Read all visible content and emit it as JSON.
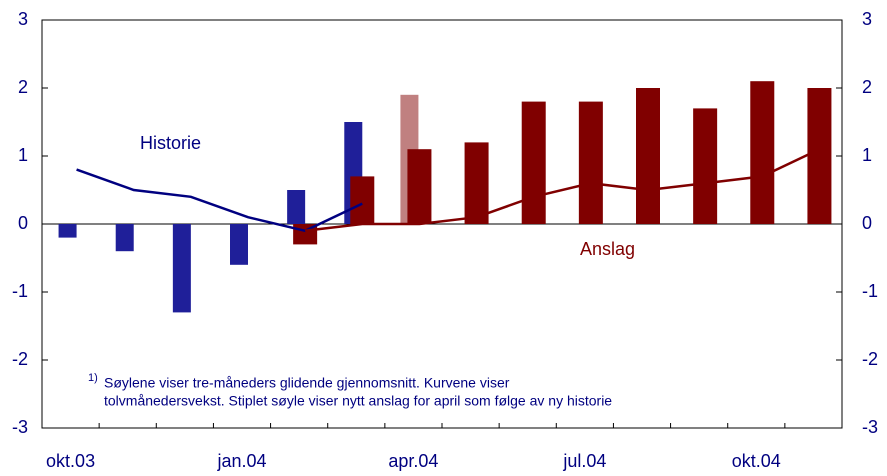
{
  "chart_data": {
    "type": "bar",
    "categories": [
      "okt.03",
      null,
      null,
      "jan.04",
      null,
      null,
      "apr.04",
      null,
      null,
      "jul.04",
      null,
      null,
      "okt.04",
      null
    ],
    "series": [
      {
        "name": "Historie",
        "type": "bar",
        "color": "#1f1f99",
        "values": [
          -0.2,
          -0.4,
          -1.3,
          -0.6,
          0.5,
          1.5,
          null,
          null,
          null,
          null,
          null,
          null,
          null,
          null
        ]
      },
      {
        "type": "bar",
        "color": "#c08080",
        "values": [
          null,
          null,
          null,
          null,
          null,
          null,
          1.9,
          null,
          null,
          null,
          null,
          null,
          null,
          null
        ]
      },
      {
        "name": "Anslag",
        "type": "bar",
        "color": "#800000",
        "values": [
          null,
          null,
          null,
          null,
          -0.3,
          0.7,
          1.1,
          1.2,
          1.8,
          1.8,
          2.0,
          1.7,
          2.1,
          2.0
        ]
      },
      {
        "type": "line",
        "color": "#000080",
        "values": [
          0.8,
          0.5,
          0.4,
          0.1,
          -0.1,
          0.3,
          null,
          null,
          null,
          null,
          null,
          null,
          null,
          null
        ]
      },
      {
        "type": "line",
        "color": "#800000",
        "values": [
          null,
          null,
          null,
          null,
          -0.1,
          0,
          0,
          0.1,
          0.4,
          0.6,
          0.5,
          0.6,
          0.7,
          1.1
        ]
      }
    ],
    "ylim": [
      -3,
      3
    ],
    "yticks": [
      -3,
      -2,
      -1,
      0,
      1,
      2,
      3
    ],
    "y2lim": [
      -3,
      3
    ],
    "y2ticks": [
      -3,
      -2,
      -1,
      0,
      1,
      2,
      3
    ],
    "footnote_marker": "1)",
    "footnote": [
      "Søylene viser tre-måneders glidende gjennomsnitt. Kurvene viser",
      "tolvmånedersvekst. Stiplet søyle viser nytt  anslag for april som følge av ny historie"
    ]
  }
}
